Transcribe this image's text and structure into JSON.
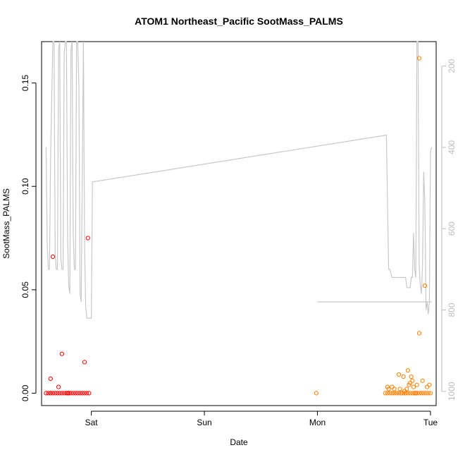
{
  "chart_data": {
    "type": "scatter",
    "title": "ATOM1 Northeast_Pacific SootMass_PALMS",
    "xlabel": "Date",
    "ylabel": "SootMass_PALMS",
    "x_tick_labels": [
      {
        "day": 1.0,
        "label": "Sat"
      },
      {
        "day": 2.0,
        "label": "Sun"
      },
      {
        "day": 3.0,
        "label": "Mon"
      },
      {
        "day": 4.0,
        "label": "Tue"
      }
    ],
    "xlim": [
      0.56,
      4.05
    ],
    "y_left": {
      "lim": [
        -0.006,
        0.17
      ],
      "ticks": [
        0.0,
        0.05,
        0.1,
        0.15
      ],
      "tick_labels": [
        "0.00",
        "0.05",
        "0.10",
        "0.15"
      ]
    },
    "y_right": {
      "lim": [
        1035,
        140
      ],
      "ticks": [
        200,
        400,
        600,
        800,
        1000
      ],
      "tick_labels": [
        "200",
        "400",
        "600",
        "800",
        "1000"
      ],
      "color": "#bdbdbd"
    },
    "grid": false,
    "series": [
      {
        "color": "#ff0000",
        "x": [
          0.6,
          0.62,
          0.64,
          0.66,
          0.68,
          0.7,
          0.72,
          0.74,
          0.76,
          0.78,
          0.8,
          0.82,
          0.84,
          0.86,
          0.88,
          0.9,
          0.92,
          0.94,
          0.96,
          0.98,
          0.66,
          0.74,
          0.64,
          0.64,
          0.71,
          0.8,
          0.79,
          0.94
        ],
        "y": [
          0,
          0,
          0,
          0,
          0,
          0,
          0,
          0,
          0,
          0,
          0,
          0,
          0,
          0,
          0,
          0,
          0,
          0,
          0,
          0,
          0.066,
          0.019,
          0.007,
          0.0,
          0.003,
          0.0,
          0.0,
          0.015
        ]
      },
      {
        "color": "#ff7f00",
        "x": [
          2.99,
          3.6,
          3.62,
          3.64,
          3.66,
          3.68,
          3.7,
          3.72,
          3.74,
          3.76,
          3.78,
          3.8,
          3.82,
          3.84,
          3.86,
          3.88,
          3.9,
          3.92,
          3.94,
          3.96,
          3.98,
          4.0,
          3.63,
          3.68,
          3.72,
          3.74,
          3.76,
          3.78,
          3.79,
          3.8,
          3.82,
          3.83,
          3.84,
          3.85,
          3.86,
          3.87,
          3.88,
          3.9,
          3.92,
          3.93,
          3.95,
          3.97,
          3.99,
          3.62,
          3.66,
          3.7,
          3.73,
          3.77,
          3.81,
          3.9
        ],
        "y": [
          0,
          0,
          0,
          0,
          0,
          0,
          0,
          0,
          0,
          0,
          0,
          0,
          0,
          0,
          0,
          0,
          0,
          0,
          0,
          0,
          0,
          0,
          0.002,
          0.002,
          0.009,
          0.0,
          0.008,
          0.0,
          0.002,
          0.011,
          0.005,
          0.008,
          0.006,
          0.003,
          0.0,
          0.0,
          0.004,
          0.162,
          0.0,
          0.006,
          0.052,
          0.003,
          0.004,
          0.003,
          0.003,
          0.0,
          0.002,
          0.001,
          0.004,
          0.029
        ]
      },
      {
        "color": "#ff0000",
        "x": [
          0.97
        ],
        "y": [
          0.075
        ]
      }
    ],
    "pressure_line": {
      "color": "#c8c8c8",
      "axis": "right",
      "x": [
        0.6,
        0.61,
        0.62,
        0.63,
        0.64,
        0.66,
        0.67,
        0.68,
        0.69,
        0.7,
        0.71,
        0.72,
        0.73,
        0.74,
        0.75,
        0.76,
        0.77,
        0.78,
        0.79,
        0.8,
        0.81,
        0.82,
        0.83,
        0.84,
        0.85,
        0.86,
        0.87,
        0.88,
        0.89,
        0.9,
        0.91,
        0.92,
        0.93,
        0.94,
        0.95,
        0.96,
        0.97,
        0.98,
        0.99,
        1.0,
        1.01,
        3.61,
        3.62,
        3.63,
        3.64,
        3.66,
        3.68,
        3.7,
        3.72,
        3.74,
        3.76,
        3.78,
        3.79,
        3.8,
        3.81,
        3.82,
        3.83,
        3.84,
        3.85,
        3.86,
        3.87,
        3.88,
        3.89,
        3.9,
        3.91,
        3.92,
        3.93,
        3.94,
        3.95,
        3.96,
        3.97,
        3.98,
        3.99,
        4.0,
        4.01
      ],
      "y": [
        400,
        640,
        700,
        700,
        420,
        140,
        140,
        660,
        700,
        700,
        160,
        140,
        670,
        700,
        700,
        170,
        140,
        140,
        620,
        740,
        760,
        160,
        140,
        610,
        700,
        700,
        140,
        140,
        250,
        760,
        780,
        470,
        140,
        640,
        790,
        820,
        820,
        820,
        820,
        820,
        485,
        370,
        540,
        700,
        700,
        720,
        720,
        720,
        720,
        720,
        720,
        720,
        745,
        745,
        745,
        745,
        720,
        720,
        610,
        700,
        720,
        140,
        140,
        690,
        740,
        760,
        690,
        460,
        540,
        800,
        780,
        810,
        780,
        410,
        400
      ],
      "secondary_x": [
        3.0,
        4.01
      ],
      "secondary_y": [
        780,
        780
      ]
    }
  }
}
